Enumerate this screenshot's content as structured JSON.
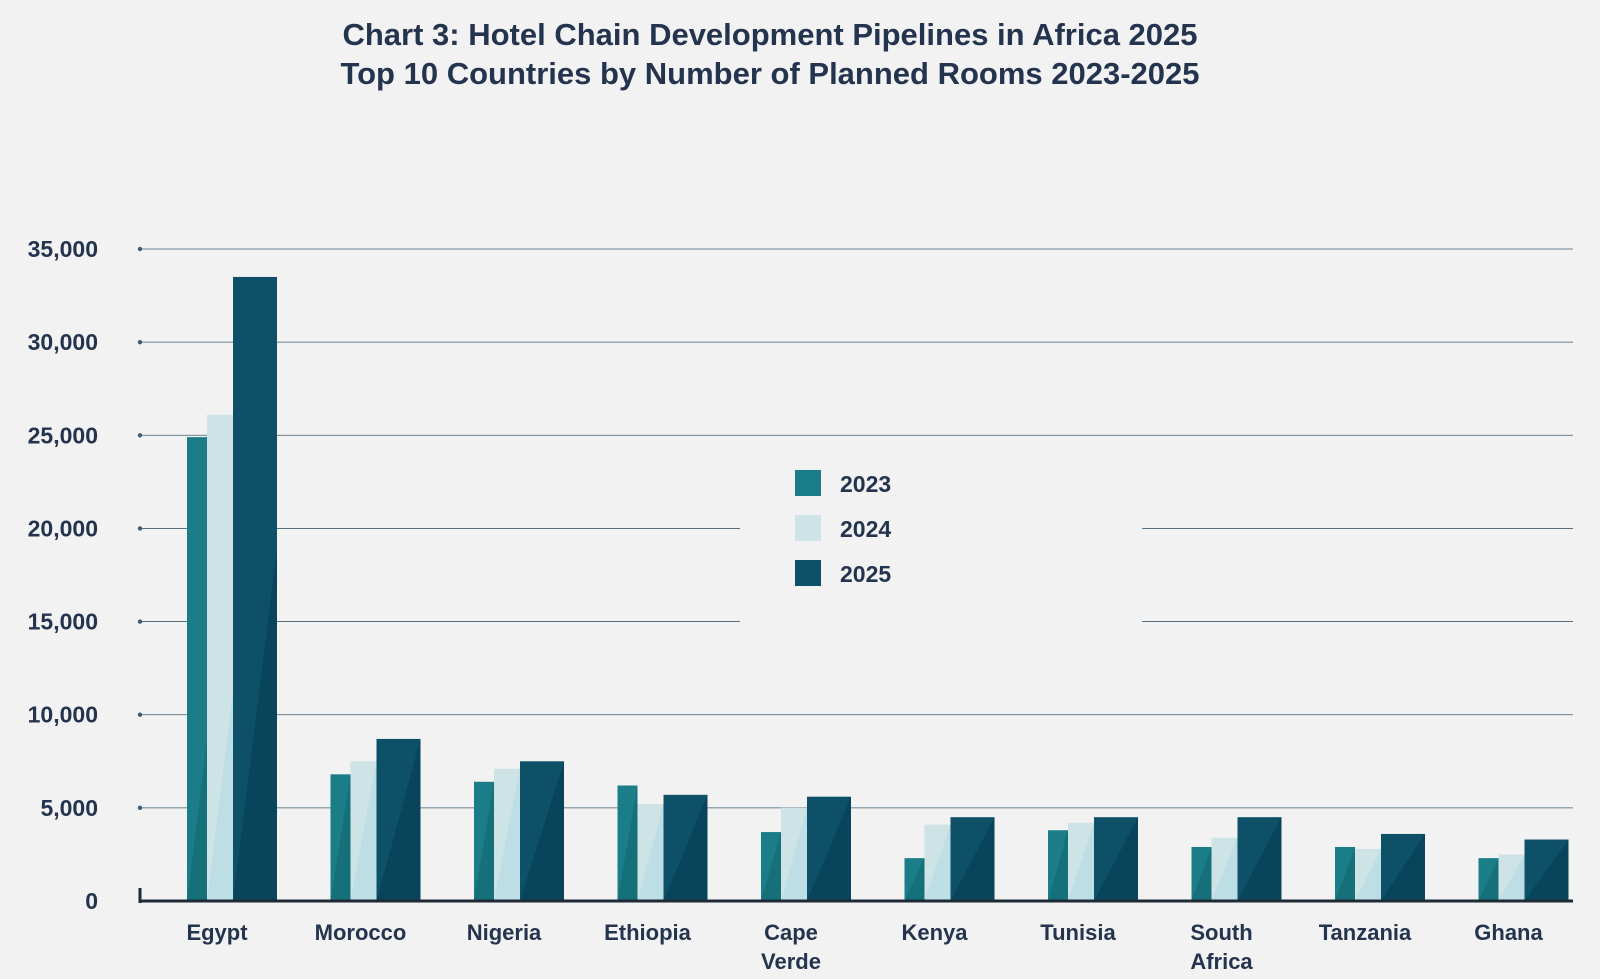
{
  "chart_data": {
    "type": "bar",
    "title": "Chart 3: Hotel Chain Development Pipelines in Africa 2025",
    "subtitle": "Top 10 Countries by Number of Planned Rooms 2023-2025",
    "xlabel": "",
    "ylabel": "",
    "ylim": [
      0,
      35000
    ],
    "yticks": [
      0,
      5000,
      10000,
      15000,
      20000,
      25000,
      30000,
      35000
    ],
    "ytick_labels": [
      "0",
      "5,000",
      "10,000",
      "15,000",
      "20,000",
      "25,000",
      "30,000",
      "35,000"
    ],
    "grid": true,
    "legend_position": "center",
    "categories": [
      "Egypt",
      "Morocco",
      "Nigeria",
      "Ethiopia",
      "Cape Verde",
      "Kenya",
      "Tunisia",
      "South Africa",
      "Tanzania",
      "Ghana"
    ],
    "series": [
      {
        "name": "2023",
        "color": "#1a7d87",
        "values": [
          24900,
          6800,
          6400,
          6200,
          3700,
          2300,
          3800,
          2900,
          2900,
          2300
        ]
      },
      {
        "name": "2024",
        "color": "#cde3e6",
        "values": [
          26100,
          7500,
          7100,
          5200,
          5000,
          4100,
          4200,
          3400,
          2800,
          2500
        ]
      },
      {
        "name": "2025",
        "color": "#0d5068",
        "values": [
          33500,
          8700,
          7500,
          5700,
          5600,
          4500,
          4500,
          4500,
          3600,
          3300
        ]
      }
    ]
  }
}
